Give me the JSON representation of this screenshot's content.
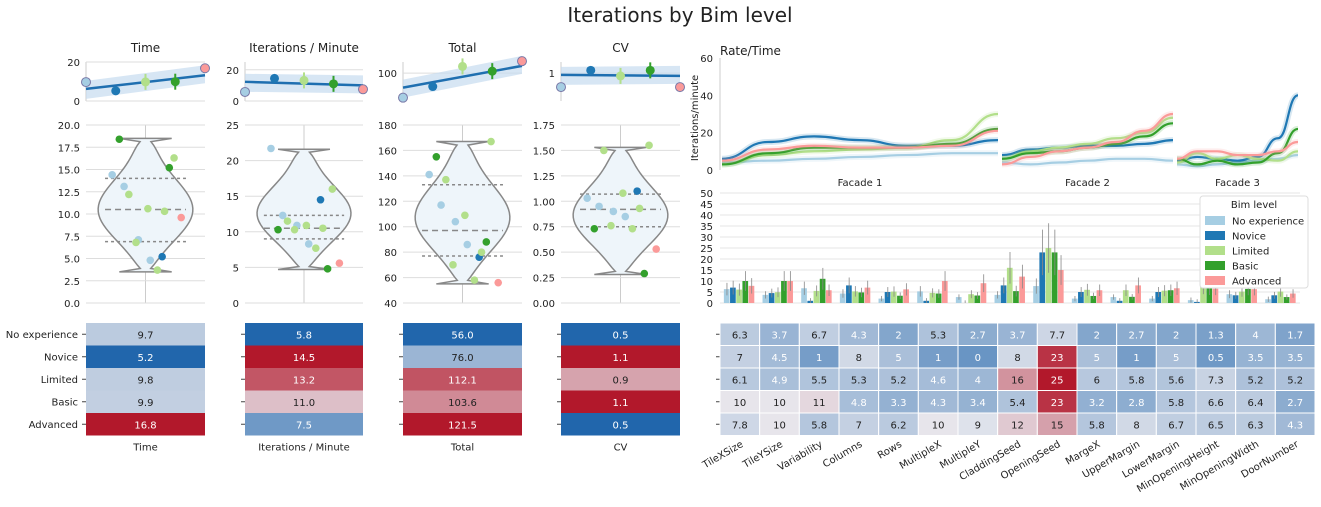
{
  "title": "Iterations by Bim level",
  "colors": {
    "No experience": "#a6cee3",
    "Novice": "#1f78b4",
    "Limited": "#b2df8a",
    "Basic": "#33a02c",
    "Advanced": "#fb9a99",
    "fit": "#1f6fb0",
    "band": "#c6dbef",
    "violet_fill": "#eef5fa",
    "violet_edge": "#888888",
    "heat_low": "#2166ac",
    "heat_mid": "#e8e8ee",
    "heat_high": "#b2182b"
  },
  "chart_data": [
    {
      "type": "scatter",
      "panel": "metric-Time",
      "title": "Time",
      "categories": [
        "No experience",
        "Novice",
        "Limited",
        "Basic",
        "Advanced"
      ],
      "top_strip": {
        "ylim": [
          0,
          20
        ],
        "yticks": [
          0,
          20
        ],
        "means": [
          9.7,
          5.2,
          9.8,
          9.9,
          16.8
        ],
        "fit_start": 6.2,
        "fit_end": 13.2
      },
      "violin": {
        "ylim": [
          0,
          20
        ],
        "yticks": [
          "0.0",
          "2.5",
          "5.0",
          "7.5",
          "10.0",
          "12.5",
          "15.0",
          "17.5",
          "20.0"
        ],
        "points": [
          {
            "g": "No experience",
            "y": 14.4
          },
          {
            "g": "No experience",
            "y": 13.1
          },
          {
            "g": "No experience",
            "y": 7.1
          },
          {
            "g": "No experience",
            "y": 4.8
          },
          {
            "g": "Novice",
            "y": 5.2
          },
          {
            "g": "Limited",
            "y": 16.3
          },
          {
            "g": "Limited",
            "y": 12.2
          },
          {
            "g": "Limited",
            "y": 10.6
          },
          {
            "g": "Limited",
            "y": 10.3
          },
          {
            "g": "Limited",
            "y": 6.8
          },
          {
            "g": "Limited",
            "y": 3.7
          },
          {
            "g": "Basic",
            "y": 18.4
          },
          {
            "g": "Basic",
            "y": 15.2
          },
          {
            "g": "Advanced",
            "y": 9.6
          }
        ],
        "quartiles": [
          6.9,
          10.5,
          14.0
        ],
        "range": [
          3.5,
          18.5
        ]
      },
      "heat": {
        "xlabel": "Time",
        "values": [
          9.7,
          5.2,
          9.8,
          9.9,
          16.8
        ],
        "labels": [
          "9.7",
          "5.2",
          "9.8",
          "9.9",
          "16.8"
        ]
      }
    },
    {
      "type": "scatter",
      "panel": "metric-Iterations",
      "title": "Iterations / Minute",
      "categories": [
        "No experience",
        "Novice",
        "Limited",
        "Basic",
        "Advanced"
      ],
      "top_strip": {
        "ylim": [
          0,
          25
        ],
        "yticks": [
          0,
          20
        ],
        "means": [
          5.8,
          14.5,
          13.2,
          11.0,
          7.5
        ],
        "fit_start": 12.3,
        "fit_end": 10.0
      },
      "violin": {
        "ylim": [
          0,
          25
        ],
        "yticks": [
          "0",
          "5",
          "10",
          "15",
          "20",
          "25"
        ],
        "points": [
          {
            "g": "No experience",
            "y": 21.7
          },
          {
            "g": "No experience",
            "y": 12.3
          },
          {
            "g": "No experience",
            "y": 10.9
          },
          {
            "g": "No experience",
            "y": 8.3
          },
          {
            "g": "Novice",
            "y": 14.5
          },
          {
            "g": "Limited",
            "y": 16.0
          },
          {
            "g": "Limited",
            "y": 11.5
          },
          {
            "g": "Limited",
            "y": 10.9
          },
          {
            "g": "Limited",
            "y": 10.5
          },
          {
            "g": "Limited",
            "y": 10.3
          },
          {
            "g": "Limited",
            "y": 7.7
          },
          {
            "g": "Basic",
            "y": 10.3
          },
          {
            "g": "Basic",
            "y": 4.8
          },
          {
            "g": "Advanced",
            "y": 5.6
          }
        ],
        "quartiles": [
          9.0,
          10.5,
          12.3
        ],
        "range": [
          4.7,
          21.6
        ]
      },
      "heat": {
        "xlabel": "Iterations / Minute",
        "values": [
          5.8,
          14.5,
          13.2,
          11.0,
          7.5
        ],
        "labels": [
          "5.8",
          "14.5",
          "13.2",
          "11.0",
          "7.5"
        ]
      }
    },
    {
      "type": "scatter",
      "panel": "metric-Total",
      "title": "Total",
      "categories": [
        "No experience",
        "Novice",
        "Limited",
        "Basic",
        "Advanced"
      ],
      "top_strip": {
        "ylim": [
          50,
          120
        ],
        "yticks": [
          100
        ],
        "means": [
          56.0,
          76.0,
          112.1,
          103.6,
          121.5
        ],
        "fit_start": 74,
        "fit_end": 113
      },
      "violin": {
        "ylim": [
          40,
          180
        ],
        "yticks": [
          "40",
          "60",
          "80",
          "100",
          "120",
          "140",
          "160",
          "180"
        ],
        "points": [
          {
            "g": "No experience",
            "y": 141
          },
          {
            "g": "No experience",
            "y": 117
          },
          {
            "g": "No experience",
            "y": 104
          },
          {
            "g": "No experience",
            "y": 86
          },
          {
            "g": "Novice",
            "y": 76
          },
          {
            "g": "Limited",
            "y": 167
          },
          {
            "g": "Limited",
            "y": 137
          },
          {
            "g": "Limited",
            "y": 109
          },
          {
            "g": "Limited",
            "y": 80
          },
          {
            "g": "Limited",
            "y": 70
          },
          {
            "g": "Limited",
            "y": 58
          },
          {
            "g": "Basic",
            "y": 155
          },
          {
            "g": "Basic",
            "y": 88
          },
          {
            "g": "Advanced",
            "y": 56
          }
        ],
        "quartiles": [
          77,
          97,
          133
        ],
        "range": [
          55,
          167
        ]
      },
      "heat": {
        "xlabel": "Total",
        "values": [
          56.0,
          76.0,
          112.1,
          103.6,
          121.5
        ],
        "labels": [
          "56.0",
          "76.0",
          "112.1",
          "103.6",
          "121.5"
        ]
      }
    },
    {
      "type": "scatter",
      "panel": "metric-CV",
      "title": "CV",
      "categories": [
        "No experience",
        "Novice",
        "Limited",
        "Basic",
        "Advanced"
      ],
      "top_strip": {
        "ylim": [
          0,
          1.4
        ],
        "yticks": [
          1
        ],
        "means": [
          0.5,
          1.1,
          0.9,
          1.1,
          0.5
        ],
        "fit_start": 0.94,
        "fit_end": 0.9
      },
      "violin": {
        "ylim": [
          0,
          1.75
        ],
        "yticks": [
          "0.00",
          "0.25",
          "0.50",
          "0.75",
          "1.00",
          "1.25",
          "1.50",
          "1.75"
        ],
        "points": [
          {
            "g": "No experience",
            "y": 1.03
          },
          {
            "g": "No experience",
            "y": 0.95
          },
          {
            "g": "No experience",
            "y": 0.9
          },
          {
            "g": "No experience",
            "y": 0.85
          },
          {
            "g": "Novice",
            "y": 1.1
          },
          {
            "g": "Limited",
            "y": 1.55
          },
          {
            "g": "Limited",
            "y": 1.5
          },
          {
            "g": "Limited",
            "y": 1.08
          },
          {
            "g": "Limited",
            "y": 0.93
          },
          {
            "g": "Limited",
            "y": 0.76
          },
          {
            "g": "Limited",
            "y": 0.73
          },
          {
            "g": "Basic",
            "y": 0.73
          },
          {
            "g": "Basic",
            "y": 0.29
          },
          {
            "g": "Advanced",
            "y": 0.53
          }
        ],
        "quartiles": [
          0.75,
          0.92,
          1.07
        ],
        "range": [
          0.28,
          1.53
        ]
      },
      "heat": {
        "xlabel": "CV",
        "values": [
          0.5,
          1.1,
          0.9,
          1.1,
          0.5
        ],
        "labels": [
          "0.5",
          "1.1",
          "0.9",
          "1.1",
          "0.5"
        ]
      }
    },
    {
      "type": "line",
      "panel": "rate-time",
      "title": "Rate/Time",
      "ylabel": "Iterations/minute",
      "ylim": [
        0,
        60
      ],
      "yticks": [
        0,
        20,
        40,
        60
      ],
      "facets": [
        "Facade 1",
        "Facade 2",
        "Facade 3"
      ],
      "series": [
        {
          "name": "No experience",
          "facets": [
            [
              4,
              5,
              6,
              7,
              8,
              9,
              9
            ],
            [
              4,
              3,
              4,
              5,
              6,
              6,
              5
            ],
            [
              3,
              2,
              3,
              4,
              5,
              6,
              8
            ]
          ]
        },
        {
          "name": "Novice",
          "facets": [
            [
              6,
              15,
              18,
              16,
              13,
              13,
              16
            ],
            [
              8,
              11,
              12,
              13,
              13,
              14,
              16
            ],
            [
              5,
              7,
              6,
              5,
              7,
              17,
              40
            ]
          ]
        },
        {
          "name": "Limited",
          "facets": [
            [
              3,
              8,
              10,
              11,
              12,
              16,
              30
            ],
            [
              6,
              10,
              12,
              14,
              17,
              20,
              28
            ],
            [
              4,
              9,
              6,
              8,
              6,
              5,
              10
            ]
          ]
        },
        {
          "name": "Basic",
          "facets": [
            [
              3,
              9,
              12,
              12,
              12,
              14,
              22
            ],
            [
              6,
              9,
              10,
              12,
              14,
              18,
              25
            ],
            [
              6,
              3,
              5,
              3,
              4,
              9,
              22
            ]
          ]
        },
        {
          "name": "Advanced",
          "facets": [
            [
              5,
              11,
              13,
              12,
              12,
              13,
              21
            ],
            [
              3,
              7,
              10,
              12,
              15,
              21,
              30
            ],
            [
              6,
              10,
              10,
              8,
              8,
              10,
              15
            ]
          ]
        }
      ]
    },
    {
      "type": "bar",
      "panel": "param-bars",
      "ylim": [
        0,
        50
      ],
      "yticks": [
        0,
        5,
        10,
        15,
        20,
        25,
        30,
        35,
        40,
        45,
        50
      ],
      "categories": [
        "TileXSize",
        "TileYSize",
        "Variability",
        "Columns",
        "Rows",
        "MultipleX",
        "MultipleY",
        "CladdingSeed",
        "OpeningSeed",
        "MargeX",
        "UpperMargin",
        "LowerMargin",
        "MinOpeningHeight",
        "MinOpeningWidth",
        "DoorNumber"
      ],
      "legend_title": "Bim level",
      "legend_position": "right",
      "series": [
        {
          "name": "No experience",
          "values": [
            6.3,
            3.7,
            6.7,
            4.3,
            2,
            5.3,
            2.7,
            3.7,
            7.7,
            2,
            2.7,
            2,
            1.3,
            4,
            1.7
          ]
        },
        {
          "name": "Novice",
          "values": [
            7,
            4.5,
            1,
            8,
            5,
            1,
            0,
            8,
            23,
            5,
            1,
            5,
            0.5,
            3.5,
            3.5
          ]
        },
        {
          "name": "Limited",
          "values": [
            6.1,
            4.9,
            5.5,
            5.3,
            5.2,
            4.6,
            4,
            16,
            25,
            6,
            5.8,
            5.6,
            7.3,
            5.2,
            5.2
          ]
        },
        {
          "name": "Basic",
          "values": [
            10,
            10,
            11,
            4.8,
            3.3,
            4.3,
            3.4,
            5.4,
            23,
            3.2,
            2.8,
            5.8,
            6.6,
            6.4,
            2.7
          ]
        },
        {
          "name": "Advanced",
          "values": [
            7.8,
            10,
            5.8,
            7,
            6.2,
            10,
            9,
            12,
            15,
            5.8,
            8,
            6.7,
            6.5,
            6.3,
            4.3
          ]
        }
      ]
    },
    {
      "type": "heatmap",
      "panel": "param-heat",
      "columns": [
        "TileXSize",
        "TileYSize",
        "Variability",
        "Columns",
        "Rows",
        "MultipleX",
        "MultipleY",
        "CladdingSeed",
        "OpeningSeed",
        "MargeX",
        "UpperMargin",
        "LowerMargin",
        "MinOpeningHeight",
        "MinOpeningWidth",
        "DoorNumber"
      ],
      "rows": [
        [
          "6.3",
          "3.7",
          "6.7",
          "4.3",
          "2",
          "5.3",
          "2.7",
          "3.7",
          "7.7",
          "2",
          "2.7",
          "2",
          "1.3",
          "4",
          "1.7"
        ],
        [
          "7",
          "4.5",
          "1",
          "8",
          "5",
          "1",
          "0",
          "8",
          "23",
          "5",
          "1",
          "5",
          "0.5",
          "3.5",
          "3.5"
        ],
        [
          "6.1",
          "4.9",
          "5.5",
          "5.3",
          "5.2",
          "4.6",
          "4",
          "16",
          "25",
          "6",
          "5.8",
          "5.6",
          "7.3",
          "5.2",
          "5.2"
        ],
        [
          "10",
          "10",
          "11",
          "4.8",
          "3.3",
          "4.3",
          "3.4",
          "5.4",
          "23",
          "3.2",
          "2.8",
          "5.8",
          "6.6",
          "6.4",
          "2.7"
        ],
        [
          "7.8",
          "10",
          "5.8",
          "7",
          "6.2",
          "10",
          "9",
          "12",
          "15",
          "5.8",
          "8",
          "6.7",
          "6.5",
          "6.3",
          "4.3"
        ]
      ]
    }
  ]
}
